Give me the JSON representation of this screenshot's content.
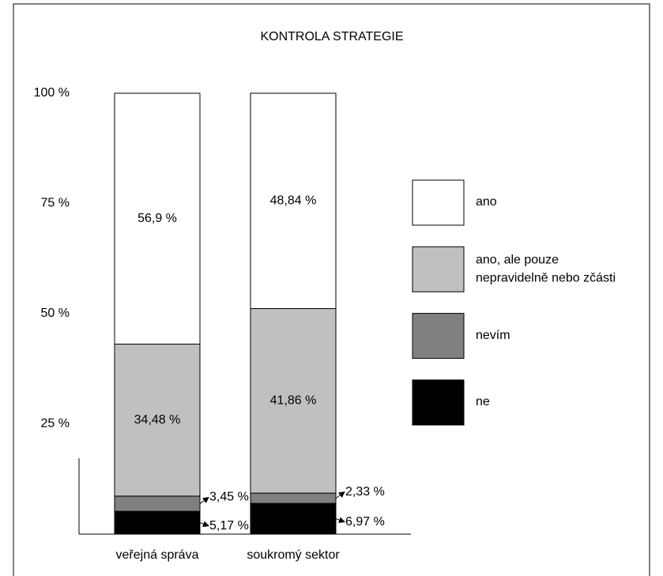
{
  "chart_data": {
    "type": "stacked_bar",
    "title": "KONTROLA STRATEGIE",
    "categories": [
      "veřejná správa",
      "soukromý sektor"
    ],
    "series": [
      {
        "name": "ne",
        "color": "#000000",
        "values": [
          5.17,
          6.97
        ],
        "value_labels": [
          "5,17 %",
          "6,97 %"
        ]
      },
      {
        "name": "nevím",
        "color": "#808080",
        "values": [
          3.45,
          2.33
        ],
        "value_labels": [
          "3,45 %",
          "2,33 %"
        ]
      },
      {
        "name": "ano, ale pouze nepravidelně nebo zčásti",
        "color": "#c0c0c0",
        "values": [
          34.48,
          41.86
        ],
        "value_labels": [
          "34,48 %",
          "41,86 %"
        ]
      },
      {
        "name": "ano",
        "color": "#ffffff",
        "values": [
          56.9,
          48.84
        ],
        "value_labels": [
          "56,9 %",
          "48,84 %"
        ]
      }
    ],
    "ylim": [
      0,
      100
    ],
    "yticks": [
      {
        "value": 25,
        "label": "25 %"
      },
      {
        "value": 50,
        "label": "50 %"
      },
      {
        "value": 75,
        "label": "75 %"
      },
      {
        "value": 100,
        "label": "100 %"
      }
    ],
    "legend": "right"
  }
}
